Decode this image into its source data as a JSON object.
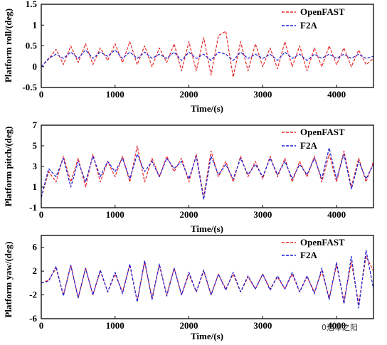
{
  "chart_data": [
    {
      "type": "line",
      "xlabel": "Time/(s)",
      "ylabel": "Platform roll/(deg)",
      "xlim": [
        0,
        4500
      ],
      "ylim": [
        -0.5,
        1.5
      ],
      "xticks": [
        0,
        1000,
        2000,
        3000,
        4000
      ],
      "xtick_labels": [
        "0",
        "1000",
        "2000",
        "3000",
        "4000"
      ],
      "yticks": [
        -0.5,
        0,
        0.5,
        1,
        1.5
      ],
      "ytick_labels": [
        "-0.5",
        "0",
        "0.5",
        "1",
        "1.5"
      ],
      "legend_position": "top-right",
      "grid": false,
      "series": [
        {
          "name": "OpenFAST",
          "color": "#e8262a",
          "x": [
            0,
            100,
            200,
            300,
            400,
            500,
            600,
            700,
            800,
            900,
            1000,
            1100,
            1200,
            1300,
            1400,
            1500,
            1600,
            1700,
            1800,
            1900,
            2000,
            2100,
            2200,
            2300,
            2400,
            2500,
            2600,
            2700,
            2800,
            2900,
            3000,
            3100,
            3200,
            3300,
            3400,
            3500,
            3600,
            3700,
            3800,
            3900,
            4000,
            4100,
            4200,
            4300,
            4400,
            4500
          ],
          "y": [
            0,
            0.18,
            0.42,
            0.05,
            0.5,
            0.1,
            0.55,
            0.05,
            0.45,
            0.15,
            0.55,
            0.1,
            0.6,
            0.05,
            0.5,
            0.0,
            0.45,
            0.1,
            0.55,
            -0.1,
            0.6,
            -0.1,
            0.7,
            -0.2,
            0.75,
            0.85,
            -0.25,
            0.6,
            -0.1,
            0.55,
            0.0,
            0.45,
            -0.05,
            0.6,
            0.0,
            0.5,
            -0.1,
            0.45,
            0.0,
            0.5,
            0.05,
            0.45,
            0.0,
            0.4,
            0.05,
            0.2
          ]
        },
        {
          "name": "F2A",
          "color": "#1a1ad6",
          "x": [
            0,
            100,
            200,
            300,
            400,
            500,
            600,
            700,
            800,
            900,
            1000,
            1100,
            1200,
            1300,
            1400,
            1500,
            1600,
            1700,
            1800,
            1900,
            2000,
            2100,
            2200,
            2300,
            2400,
            2500,
            2600,
            2700,
            2800,
            2900,
            3000,
            3100,
            3200,
            3300,
            3400,
            3500,
            3600,
            3700,
            3800,
            3900,
            4000,
            4100,
            4200,
            4300,
            4400,
            4500
          ],
          "y": [
            0,
            0.2,
            0.3,
            0.2,
            0.35,
            0.2,
            0.4,
            0.2,
            0.35,
            0.25,
            0.4,
            0.2,
            0.35,
            0.2,
            0.35,
            0.2,
            0.3,
            0.2,
            0.35,
            0.15,
            0.35,
            0.2,
            0.3,
            0.15,
            0.35,
            0.3,
            0.15,
            0.35,
            0.2,
            0.3,
            0.2,
            0.3,
            0.15,
            0.35,
            0.2,
            0.3,
            0.15,
            0.3,
            0.2,
            0.3,
            0.2,
            0.3,
            0.2,
            0.3,
            0.2,
            0.25
          ]
        }
      ]
    },
    {
      "type": "line",
      "xlabel": "Time/(s)",
      "ylabel": "Platform pitch/(deg)",
      "xlim": [
        0,
        4500
      ],
      "ylim": [
        -1,
        7
      ],
      "xticks": [
        0,
        1000,
        2000,
        3000,
        4000
      ],
      "xtick_labels": [
        "0",
        "1000",
        "2000",
        "3000",
        "4000"
      ],
      "yticks": [
        -1,
        1,
        3,
        5,
        7
      ],
      "ytick_labels": [
        "-1",
        "1",
        "3",
        "5",
        "7"
      ],
      "legend_position": "top-right",
      "grid": false,
      "series": [
        {
          "name": "OpenFAST",
          "color": "#e8262a",
          "x": [
            0,
            100,
            200,
            300,
            400,
            500,
            600,
            700,
            800,
            900,
            1000,
            1100,
            1200,
            1300,
            1400,
            1500,
            1600,
            1700,
            1800,
            1900,
            2000,
            2100,
            2200,
            2300,
            2400,
            2500,
            2600,
            2700,
            2800,
            2900,
            3000,
            3100,
            3200,
            3300,
            3400,
            3500,
            3600,
            3700,
            3800,
            3900,
            4000,
            4100,
            4200,
            4300,
            4400,
            4500
          ],
          "y": [
            0,
            2.5,
            1.5,
            4.0,
            1.5,
            3.8,
            1.0,
            4.2,
            1.5,
            3.5,
            2.0,
            4.0,
            1.5,
            5.0,
            1.5,
            3.8,
            2.0,
            4.0,
            2.5,
            3.8,
            1.5,
            4.2,
            0.0,
            4.5,
            2.0,
            3.5,
            1.5,
            4.0,
            2.0,
            3.5,
            1.8,
            4.0,
            2.0,
            3.8,
            1.5,
            3.5,
            2.0,
            4.0,
            1.5,
            4.2,
            1.5,
            4.5,
            1.0,
            3.8,
            1.5,
            3.5
          ]
        },
        {
          "name": "F2A",
          "color": "#1a1ad6",
          "x": [
            0,
            100,
            200,
            300,
            400,
            500,
            600,
            700,
            800,
            900,
            1000,
            1100,
            1200,
            1300,
            1400,
            1500,
            1600,
            1700,
            1800,
            1900,
            2000,
            2100,
            2200,
            2300,
            2400,
            2500,
            2600,
            2700,
            2800,
            2900,
            3000,
            3100,
            3200,
            3300,
            3400,
            3500,
            3600,
            3700,
            3800,
            3900,
            4000,
            4100,
            4200,
            4300,
            4400,
            4500
          ],
          "y": [
            0,
            2.8,
            2.0,
            3.8,
            1.0,
            3.5,
            1.5,
            4.0,
            2.0,
            3.5,
            2.5,
            3.8,
            1.8,
            4.2,
            2.5,
            3.5,
            2.0,
            3.8,
            2.8,
            3.5,
            1.8,
            4.0,
            -0.2,
            4.0,
            2.2,
            3.2,
            1.8,
            3.8,
            2.2,
            3.2,
            2.0,
            3.8,
            2.2,
            3.5,
            1.8,
            3.2,
            2.2,
            3.8,
            1.8,
            4.8,
            1.8,
            4.2,
            0.8,
            3.5,
            1.8,
            3.2
          ]
        }
      ]
    },
    {
      "type": "line",
      "xlabel": "Time/(s)",
      "ylabel": "Platform yaw/(deg)",
      "xlim": [
        0,
        4500
      ],
      "ylim": [
        -6,
        8
      ],
      "xticks": [
        0,
        1000,
        2000,
        3000,
        4000
      ],
      "xtick_labels": [
        "0",
        "1000",
        "2000",
        "3000",
        "4000"
      ],
      "yticks": [
        -6,
        -2,
        2,
        6
      ],
      "ytick_labels": [
        "-6",
        "-2",
        "2",
        "6"
      ],
      "legend_position": "top-right",
      "grid": false,
      "series": [
        {
          "name": "OpenFAST",
          "color": "#e8262a",
          "x": [
            0,
            100,
            200,
            300,
            400,
            500,
            600,
            700,
            800,
            900,
            1000,
            1100,
            1200,
            1300,
            1400,
            1500,
            1600,
            1700,
            1800,
            1900,
            2000,
            2100,
            2200,
            2300,
            2400,
            2500,
            2600,
            2700,
            2800,
            2900,
            3000,
            3100,
            3200,
            3300,
            3400,
            3500,
            3600,
            3700,
            3800,
            3900,
            4000,
            4100,
            4200,
            4300,
            4400,
            4500
          ],
          "y": [
            0,
            0.5,
            2.5,
            -2.0,
            3.0,
            -2.5,
            2.5,
            -2.0,
            2.0,
            -1.5,
            1.5,
            -1.5,
            3.0,
            -3.0,
            3.5,
            -2.5,
            3.0,
            -2.0,
            2.5,
            -2.0,
            1.5,
            -1.5,
            2.0,
            -2.0,
            1.5,
            -1.0,
            1.5,
            -1.5,
            1.0,
            -1.0,
            1.5,
            -1.0,
            1.0,
            -1.0,
            1.5,
            -1.5,
            1.0,
            -1.5,
            2.0,
            -2.5,
            3.0,
            -3.0,
            3.5,
            -3.5,
            4.5,
            2.0
          ]
        },
        {
          "name": "F2A",
          "color": "#1a1ad6",
          "x": [
            0,
            100,
            200,
            300,
            400,
            500,
            600,
            700,
            800,
            900,
            1000,
            1100,
            1200,
            1300,
            1400,
            1500,
            1600,
            1700,
            1800,
            1900,
            2000,
            2100,
            2200,
            2300,
            2400,
            2500,
            2600,
            2700,
            2800,
            2900,
            3000,
            3100,
            3200,
            3300,
            3400,
            3500,
            3600,
            3700,
            3800,
            3900,
            4000,
            4100,
            4200,
            4300,
            4400,
            4500
          ],
          "y": [
            0,
            0.3,
            2.8,
            -2.2,
            3.0,
            -2.5,
            2.5,
            -2.0,
            2.2,
            -1.5,
            1.8,
            -1.8,
            3.2,
            -3.2,
            3.8,
            -2.8,
            3.2,
            -2.2,
            2.5,
            -2.0,
            1.8,
            -1.5,
            2.2,
            -2.0,
            1.5,
            -1.2,
            1.8,
            -1.5,
            1.2,
            -1.0,
            1.5,
            -1.2,
            1.2,
            -1.0,
            1.8,
            -1.5,
            1.2,
            -1.8,
            2.5,
            -2.8,
            3.5,
            -3.5,
            4.5,
            -4.2,
            5.5,
            -1.0
          ]
        }
      ]
    }
  ],
  "watermark": "0浩草之阳"
}
